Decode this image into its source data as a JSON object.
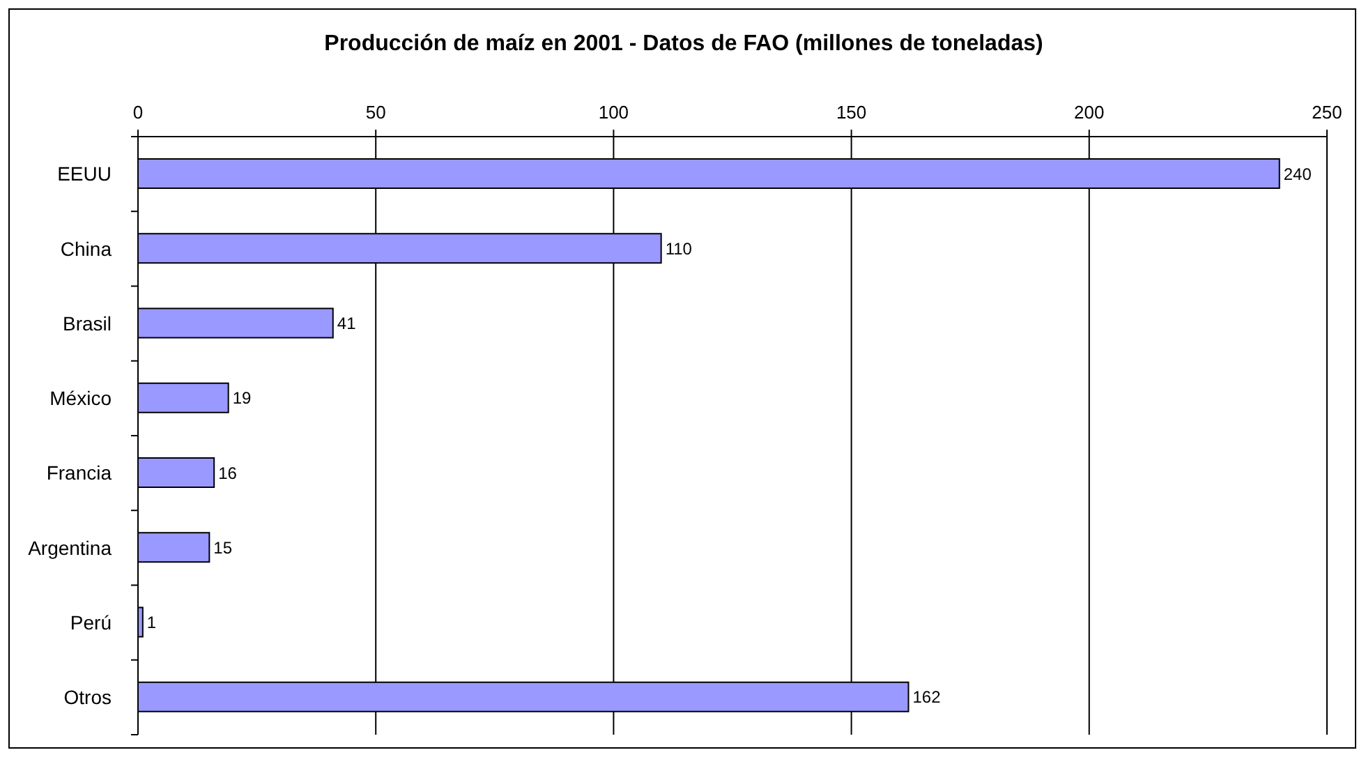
{
  "chart_data": {
    "type": "bar",
    "orientation": "horizontal",
    "title": "Producción de maíz en 2001 - Datos de FAO (millones de toneladas)",
    "categories": [
      "EEUU",
      "China",
      "Brasil",
      "México",
      "Francia",
      "Argentina",
      "Perú",
      "Otros"
    ],
    "values": [
      240,
      110,
      41,
      19,
      16,
      15,
      1,
      162
    ],
    "color": "#9999ff",
    "xlim": [
      0,
      250
    ],
    "xticks": [
      0,
      50,
      100,
      150,
      200,
      250
    ],
    "grid": "x",
    "data_labels": true
  }
}
